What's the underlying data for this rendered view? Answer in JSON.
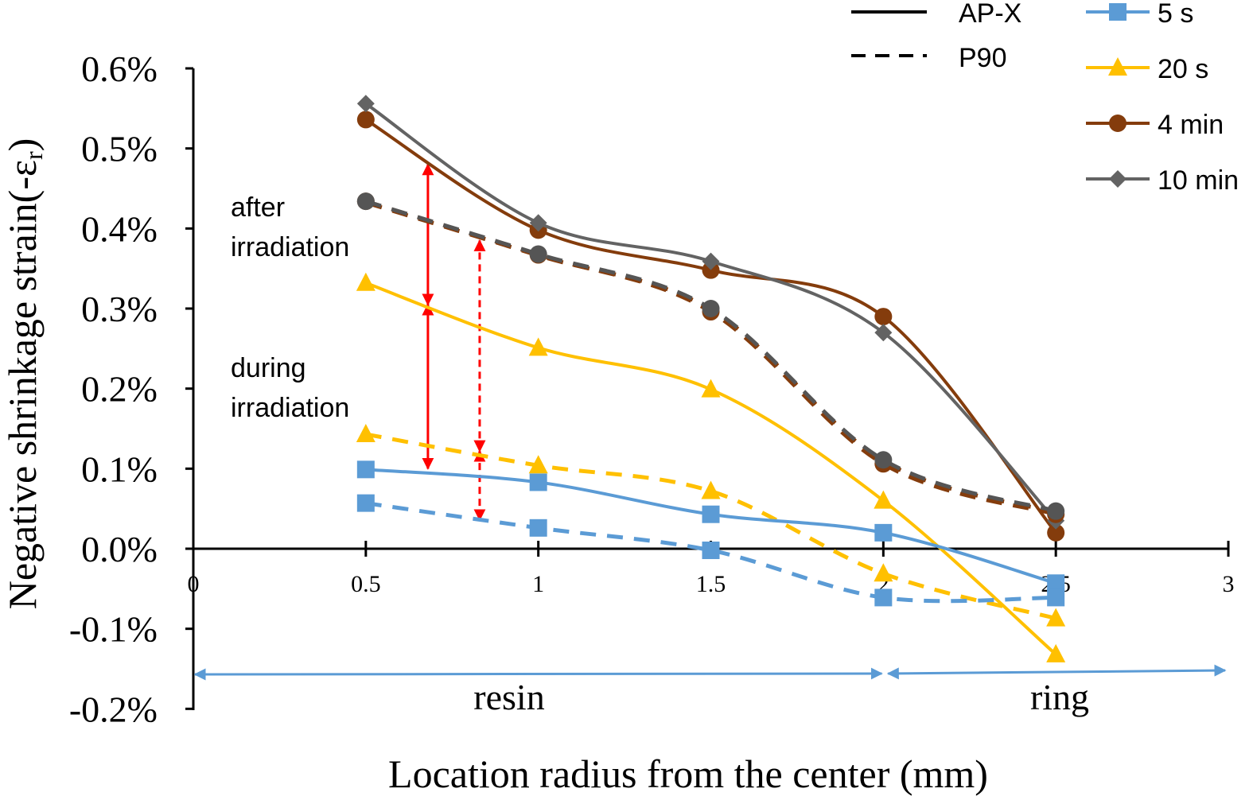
{
  "chart_data": {
    "type": "line",
    "title": "",
    "xlabel": "Location radius from the center (mm)",
    "ylabel": "Negative shrinkage  strain(-ε",
    "ylabel_sub": "r",
    "ylabel_close": ")",
    "xlim": [
      0,
      3
    ],
    "ylim": [
      -0.2,
      0.6
    ],
    "x_ticks": [
      0,
      0.5,
      1,
      1.5,
      2,
      2.5,
      3
    ],
    "x_tick_labels": [
      "0",
      "0.5",
      "1",
      "1.5",
      "2",
      "2.5",
      "3"
    ],
    "y_ticks": [
      0.6,
      0.5,
      0.4,
      0.3,
      0.2,
      0.1,
      0.0,
      -0.1,
      -0.2
    ],
    "y_tick_labels": [
      "0.6%",
      "0.5%",
      "0.4%",
      "0.3%",
      "0.2%",
      "0.1%",
      "0.0%",
      "-0.1%",
      "-0.2%"
    ],
    "y_unit": "%",
    "grid": false,
    "legend_placement": "top-right",
    "line_style_legend": [
      {
        "label": "AP-X",
        "style": "solid"
      },
      {
        "label": "P90",
        "style": "dashed"
      }
    ],
    "time_legend": [
      {
        "label": "5 s",
        "color": "#5b9bd5",
        "marker": "square"
      },
      {
        "label": "20 s",
        "color": "#ffc000",
        "marker": "triangle"
      },
      {
        "label": "4 min",
        "color": "#843c0c",
        "marker": "circle"
      },
      {
        "label": "10 min",
        "color": "#636363",
        "marker": "diamond"
      }
    ],
    "x": [
      0.5,
      1,
      1.5,
      2,
      2.5
    ],
    "series": [
      {
        "name": "AP-X 4 min",
        "material": "AP-X",
        "time": "4 min",
        "style": "solid",
        "color": "#843c0c",
        "marker": "circle",
        "values": [
          0.536,
          0.398,
          0.348,
          0.29,
          0.02
        ]
      },
      {
        "name": "AP-X 10 min",
        "material": "AP-X",
        "time": "10 min",
        "style": "solid",
        "color": "#636363",
        "marker": "diamond",
        "values": [
          0.556,
          0.407,
          0.359,
          0.27,
          0.035
        ]
      },
      {
        "name": "P90 4 min",
        "material": "P90",
        "time": "4 min",
        "style": "dashed",
        "color": "#843c0c",
        "marker": "circle",
        "values": [
          0.434,
          0.367,
          0.296,
          0.106,
          0.043
        ]
      },
      {
        "name": "P90 10 min",
        "material": "P90",
        "time": "10 min",
        "style": "dashed",
        "color": "#555555",
        "marker": "circle",
        "values": [
          0.434,
          0.368,
          0.3,
          0.111,
          0.047
        ]
      },
      {
        "name": "AP-X 20 s",
        "material": "AP-X",
        "time": "20 s",
        "style": "solid",
        "color": "#ffc000",
        "marker": "triangle",
        "values": [
          0.332,
          0.251,
          0.199,
          0.06,
          -0.132
        ]
      },
      {
        "name": "P90 20 s",
        "material": "P90",
        "time": "20 s",
        "style": "dashed",
        "color": "#ffc000",
        "marker": "triangle",
        "values": [
          0.143,
          0.104,
          0.072,
          -0.031,
          -0.087
        ]
      },
      {
        "name": "AP-X 5 s",
        "material": "AP-X",
        "time": "5 s",
        "style": "solid",
        "color": "#5b9bd5",
        "marker": "square",
        "values": [
          0.099,
          0.083,
          0.043,
          0.02,
          -0.043
        ]
      },
      {
        "name": "P90 5 s",
        "material": "P90",
        "time": "5 s",
        "style": "dashed",
        "color": "#5b9bd5",
        "marker": "square",
        "values": [
          0.057,
          0.026,
          -0.002,
          -0.061,
          -0.061
        ]
      }
    ],
    "annotations": {
      "after_line1": "after",
      "after_line2": "irradiation",
      "during_line1": "during",
      "during_line2": "irradiation",
      "region_resin": "resin",
      "region_ring": "ring",
      "arrow_color": "#ff0000",
      "region_arrow_color": "#5b9bd5",
      "solid_arrow_x": 0.68,
      "solid_arrow_values": [
        0.48,
        0.305,
        0.1
      ],
      "dashed_arrow_x": 0.83,
      "dashed_arrow_values": [
        0.385,
        0.122,
        0.036
      ],
      "resin_range": [
        0,
        2
      ],
      "ring_range": [
        2,
        3
      ]
    }
  }
}
